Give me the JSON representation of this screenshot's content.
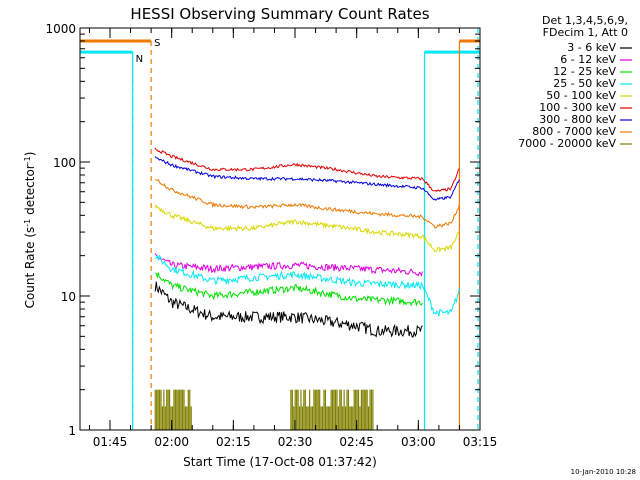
{
  "title": "HESSI Observing Summary Count Rates",
  "footer": {
    "timestamp": "10-Jan-2010 10:28"
  },
  "legend": {
    "header": [
      "Det 1,3,4,5,6,9,",
      "FDecim 1, Att 0"
    ],
    "entries": [
      {
        "label": "3 - 6 keV",
        "color": "#000000"
      },
      {
        "label": "6 - 12 keV",
        "color": "#e000e0"
      },
      {
        "label": "12 - 25 keV",
        "color": "#00e000"
      },
      {
        "label": "25 - 50 keV",
        "color": "#00e8f0"
      },
      {
        "label": "50 - 100 keV",
        "color": "#d8d800"
      },
      {
        "label": "100 - 300 keV",
        "color": "#e00000"
      },
      {
        "label": "300 - 800 keV",
        "color": "#0000e0"
      },
      {
        "label": "800 - 7000 keV",
        "color": "#f07800"
      },
      {
        "label": "7000 - 20000 keV",
        "color": "#808000"
      }
    ]
  },
  "flags": {
    "night_color": "#00e8f0",
    "saa_color": "#f07800",
    "saa_label": "S",
    "night_label": "N"
  },
  "chart_data": {
    "type": "line",
    "title": "HESSI Observing Summary Count Rates",
    "xlabel": "Start Time (17-Oct-08 01:37:42)",
    "ylabel": "Count Rate (s-1 detector-1)",
    "yscale": "log",
    "xlim_min": [
      97.7,
      195
    ],
    "ylim": [
      1,
      1000
    ],
    "xticks": [
      {
        "min": 105,
        "label": "01:45"
      },
      {
        "min": 120,
        "label": "02:00"
      },
      {
        "min": 135,
        "label": "02:15"
      },
      {
        "min": 150,
        "label": "02:30"
      },
      {
        "min": 165,
        "label": "02:45"
      },
      {
        "min": 180,
        "label": "03:00"
      },
      {
        "min": 195,
        "label": "03:15"
      }
    ],
    "yticks": [
      {
        "v": 1,
        "label": "1"
      },
      {
        "v": 10,
        "label": "10"
      },
      {
        "v": 100,
        "label": "100"
      },
      {
        "v": 1000,
        "label": "1000"
      }
    ],
    "night_intervals": [
      [
        97.7,
        110.5
      ],
      [
        181.5,
        196
      ]
    ],
    "saa_intervals": [
      [
        110.5,
        115
      ],
      [
        190,
        196
      ]
    ],
    "series": [
      {
        "name": "3 - 6 keV",
        "color": "#000000",
        "noise": 0.1,
        "points": [
          [
            116,
            12
          ],
          [
            120,
            9
          ],
          [
            130,
            7
          ],
          [
            150,
            7
          ],
          [
            165,
            6
          ],
          [
            170,
            5.5
          ],
          [
            181,
            5.5
          ]
        ]
      },
      {
        "name": "6 - 12 keV",
        "color": "#e000e0",
        "noise": 0.06,
        "points": [
          [
            116,
            20
          ],
          [
            120,
            17
          ],
          [
            130,
            16
          ],
          [
            150,
            17
          ],
          [
            165,
            16
          ],
          [
            181,
            15
          ]
        ]
      },
      {
        "name": "12 - 25 keV",
        "color": "#00e000",
        "noise": 0.06,
        "points": [
          [
            116,
            15
          ],
          [
            120,
            12
          ],
          [
            130,
            10
          ],
          [
            150,
            11.5
          ],
          [
            165,
            9.5
          ],
          [
            181,
            9
          ]
        ]
      },
      {
        "name": "25 - 50 keV",
        "color": "#00e8f0",
        "noise": 0.06,
        "points": [
          [
            116,
            20
          ],
          [
            120,
            16
          ],
          [
            130,
            13
          ],
          [
            150,
            14.5
          ],
          [
            165,
            12.5
          ],
          [
            181,
            12
          ],
          [
            184,
            7.5
          ],
          [
            188,
            7.5
          ],
          [
            190,
            11
          ]
        ]
      },
      {
        "name": "50 - 100 keV",
        "color": "#d8d800",
        "noise": 0.04,
        "points": [
          [
            116,
            47
          ],
          [
            120,
            40
          ],
          [
            130,
            32
          ],
          [
            140,
            32
          ],
          [
            150,
            36
          ],
          [
            160,
            33
          ],
          [
            170,
            30
          ],
          [
            181,
            28
          ],
          [
            184,
            22
          ],
          [
            188,
            23
          ],
          [
            190,
            30
          ]
        ]
      },
      {
        "name": "100 - 300 keV",
        "color": "#e00000",
        "noise": 0.025,
        "points": [
          [
            116,
            125
          ],
          [
            120,
            110
          ],
          [
            130,
            88
          ],
          [
            140,
            88
          ],
          [
            150,
            96
          ],
          [
            160,
            88
          ],
          [
            170,
            78
          ],
          [
            181,
            75
          ],
          [
            184,
            60
          ],
          [
            188,
            63
          ],
          [
            190,
            90
          ]
        ]
      },
      {
        "name": "300 - 800 keV",
        "color": "#0000e0",
        "noise": 0.025,
        "points": [
          [
            116,
            108
          ],
          [
            120,
            95
          ],
          [
            130,
            78
          ],
          [
            140,
            75
          ],
          [
            150,
            75
          ],
          [
            160,
            72
          ],
          [
            170,
            68
          ],
          [
            181,
            64
          ],
          [
            184,
            52
          ],
          [
            188,
            55
          ],
          [
            190,
            75
          ]
        ]
      },
      {
        "name": "800 - 7000 keV",
        "color": "#f07800",
        "noise": 0.03,
        "points": [
          [
            116,
            75
          ],
          [
            120,
            62
          ],
          [
            130,
            48
          ],
          [
            140,
            46
          ],
          [
            150,
            48
          ],
          [
            160,
            44
          ],
          [
            170,
            41
          ],
          [
            181,
            39
          ],
          [
            184,
            33
          ],
          [
            188,
            35
          ],
          [
            190,
            48
          ]
        ]
      },
      {
        "name": "7000 - 20000 keV",
        "color": "#808000",
        "blocks": [
          [
            116,
            125
          ],
          [
            149,
            169
          ]
        ],
        "ymax": 2
      }
    ]
  }
}
